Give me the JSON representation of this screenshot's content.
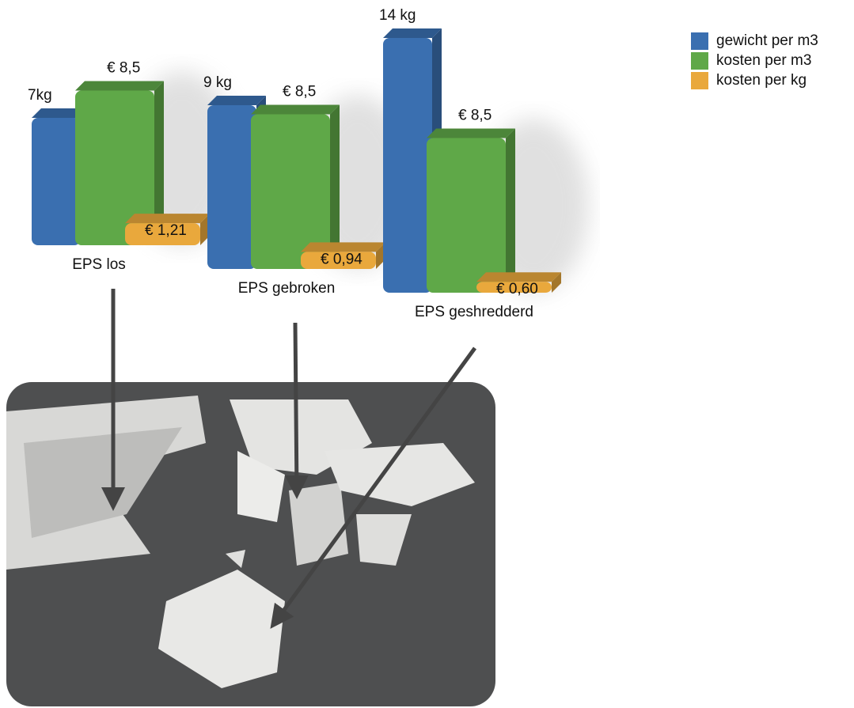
{
  "chart_data": {
    "type": "bar",
    "categories": [
      "EPS los",
      "EPS gebroken",
      "EPS geshredderd"
    ],
    "series": [
      {
        "name": "gewicht per m3",
        "color": "#3a6fb0",
        "values": [
          7,
          9,
          14
        ],
        "value_labels": [
          "7kg",
          "9 kg",
          "14 kg"
        ]
      },
      {
        "name": "kosten per m3",
        "color": "#5fa848",
        "values": [
          8.5,
          8.5,
          8.5
        ],
        "value_labels": [
          "€ 8,5",
          "€ 8,5",
          "€ 8,5"
        ]
      },
      {
        "name": "kosten per kg",
        "color": "#e9a83c",
        "values": [
          1.21,
          0.94,
          0.6
        ],
        "value_labels": [
          "€ 1,21",
          "€ 0,94",
          "€ 0,60"
        ]
      }
    ],
    "legend": "top-right"
  }
}
